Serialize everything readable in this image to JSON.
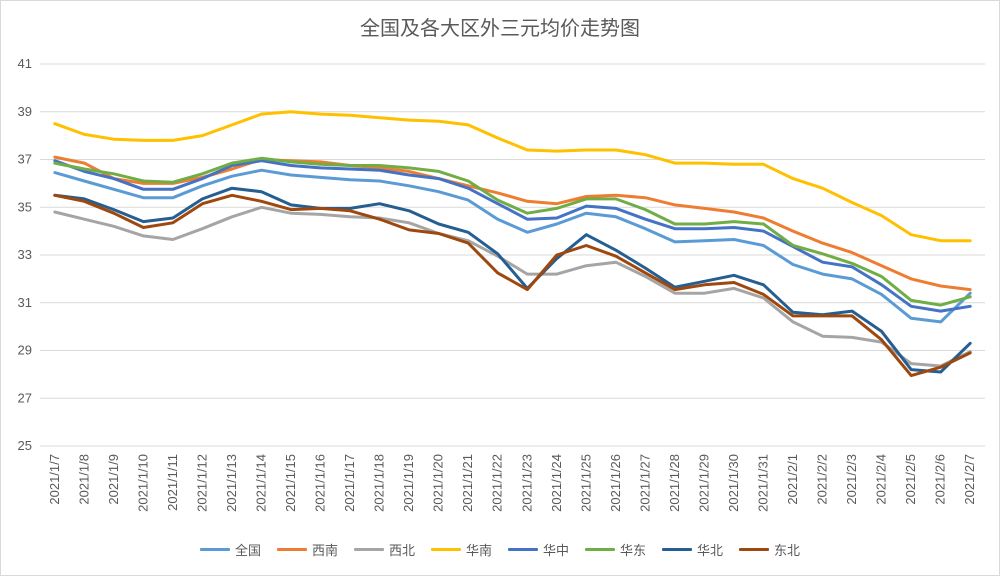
{
  "chart_data": {
    "type": "line",
    "title": "全国及各大区外三元均价走势图",
    "xlabel": "",
    "ylabel": "",
    "ylim": [
      25,
      41
    ],
    "yticks": [
      25,
      27,
      29,
      31,
      33,
      35,
      37,
      39,
      41
    ],
    "grid": true,
    "legend_position": "bottom",
    "categories": [
      "2021/1/7",
      "2021/1/8",
      "2021/1/9",
      "2021/1/10",
      "2021/1/11",
      "2021/1/12",
      "2021/1/13",
      "2021/1/14",
      "2021/1/15",
      "2021/1/16",
      "2021/1/17",
      "2021/1/18",
      "2021/1/19",
      "2021/1/20",
      "2021/1/21",
      "2021/1/22",
      "2021/1/23",
      "2021/1/24",
      "2021/1/25",
      "2021/1/26",
      "2021/1/27",
      "2021/1/28",
      "2021/1/29",
      "2021/1/30",
      "2021/1/31",
      "2021/2/1",
      "2021/2/2",
      "2021/2/3",
      "2021/2/4",
      "2021/2/5",
      "2021/2/6",
      "2021/2/7"
    ],
    "series": [
      {
        "name": "全国",
        "color": "#5b9bd5",
        "values": [
          36.45,
          36.1,
          35.75,
          35.4,
          35.4,
          35.9,
          36.3,
          36.55,
          36.35,
          36.25,
          36.15,
          36.1,
          35.9,
          35.65,
          35.3,
          34.5,
          33.95,
          34.3,
          34.75,
          34.6,
          34.1,
          33.55,
          33.6,
          33.65,
          33.4,
          32.6,
          32.2,
          32.0,
          31.35,
          30.35,
          30.2,
          31.4
        ]
      },
      {
        "name": "西南",
        "color": "#ed7d31",
        "values": [
          37.1,
          36.85,
          36.2,
          36.0,
          36.0,
          36.25,
          36.6,
          37.0,
          36.95,
          36.9,
          36.75,
          36.65,
          36.5,
          36.2,
          35.9,
          35.6,
          35.25,
          35.15,
          35.45,
          35.5,
          35.4,
          35.1,
          34.95,
          34.8,
          34.55,
          34.0,
          33.5,
          33.1,
          32.55,
          32.0,
          31.7,
          31.55
        ]
      },
      {
        "name": "西北",
        "color": "#a5a5a5",
        "values": [
          34.8,
          34.5,
          34.2,
          33.8,
          33.65,
          34.1,
          34.6,
          35.0,
          34.75,
          34.7,
          34.6,
          34.55,
          34.35,
          33.9,
          33.6,
          32.95,
          32.2,
          32.2,
          32.55,
          32.7,
          32.1,
          31.4,
          31.4,
          31.6,
          31.2,
          30.2,
          29.6,
          29.55,
          29.35,
          28.45,
          28.35,
          28.95
        ]
      },
      {
        "name": "华南",
        "color": "#ffc000",
        "values": [
          38.5,
          38.05,
          37.85,
          37.8,
          37.8,
          38.0,
          38.45,
          38.9,
          39.0,
          38.9,
          38.85,
          38.75,
          38.65,
          38.6,
          38.45,
          37.9,
          37.4,
          37.35,
          37.4,
          37.4,
          37.2,
          36.85,
          36.85,
          36.8,
          36.8,
          36.2,
          35.8,
          35.2,
          34.65,
          33.85,
          33.6,
          33.6
        ]
      },
      {
        "name": "华中",
        "color": "#4472c4",
        "values": [
          36.95,
          36.5,
          36.2,
          35.75,
          35.75,
          36.2,
          36.75,
          36.95,
          36.75,
          36.65,
          36.6,
          36.55,
          36.35,
          36.2,
          35.8,
          35.15,
          34.5,
          34.55,
          35.05,
          34.95,
          34.5,
          34.1,
          34.1,
          34.15,
          34.0,
          33.35,
          32.7,
          32.5,
          31.75,
          30.85,
          30.65,
          30.85
        ]
      },
      {
        "name": "华东",
        "color": "#70ad47",
        "values": [
          36.85,
          36.6,
          36.4,
          36.1,
          36.05,
          36.4,
          36.85,
          37.05,
          36.9,
          36.8,
          36.75,
          36.75,
          36.65,
          36.5,
          36.1,
          35.3,
          34.75,
          34.95,
          35.35,
          35.35,
          34.9,
          34.3,
          34.3,
          34.4,
          34.3,
          33.4,
          33.05,
          32.65,
          32.1,
          31.1,
          30.9,
          31.25
        ]
      },
      {
        "name": "华北",
        "color": "#255e91",
        "values": [
          35.5,
          35.35,
          34.9,
          34.4,
          34.55,
          35.35,
          35.8,
          35.65,
          35.1,
          34.95,
          34.95,
          35.15,
          34.85,
          34.3,
          33.95,
          33.05,
          31.6,
          32.85,
          33.85,
          33.2,
          32.45,
          31.65,
          31.9,
          32.15,
          31.75,
          30.6,
          30.5,
          30.65,
          29.8,
          28.2,
          28.1,
          29.3
        ]
      },
      {
        "name": "东北",
        "color": "#9e480e",
        "values": [
          35.5,
          35.25,
          34.75,
          34.15,
          34.35,
          35.15,
          35.5,
          35.25,
          34.9,
          34.95,
          34.85,
          34.5,
          34.05,
          33.9,
          33.5,
          32.25,
          31.55,
          33.0,
          33.4,
          32.95,
          32.25,
          31.55,
          31.75,
          31.85,
          31.35,
          30.45,
          30.45,
          30.45,
          29.45,
          27.95,
          28.3,
          28.9
        ]
      }
    ]
  }
}
